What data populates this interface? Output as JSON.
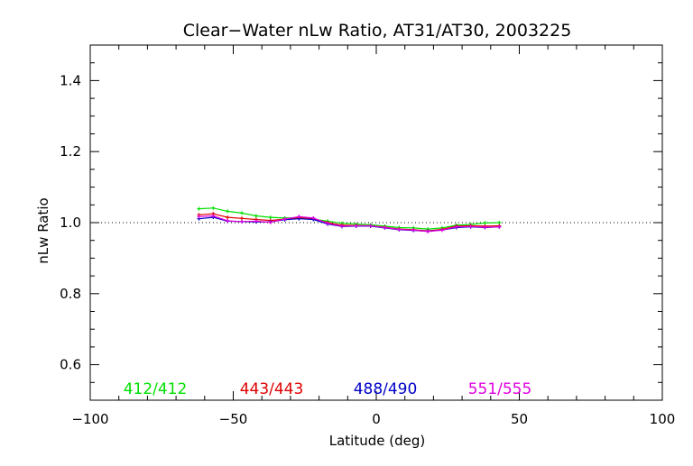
{
  "chart_data": {
    "type": "line",
    "title": "Clear−Water nLw Ratio, AT31/AT30, 2003225",
    "xlabel": "Latitude (deg)",
    "ylabel": "nLw Ratio",
    "xlim": [
      -100,
      100
    ],
    "ylim": [
      0.5,
      1.5
    ],
    "x_ticks": [
      -100,
      -50,
      0,
      50,
      100
    ],
    "x_tick_labels": [
      "−100",
      "−50",
      "0",
      "50",
      "100"
    ],
    "y_ticks": [
      0.6,
      0.8,
      1.0,
      1.2,
      1.4
    ],
    "y_tick_labels": [
      "0.6",
      "0.8",
      "1.0",
      "1.2",
      "1.4"
    ],
    "reference_line": 1.0,
    "grid": false,
    "series": [
      {
        "name": "412/412",
        "color": "#00e000",
        "x": [
          -62,
          -57,
          -52,
          -47,
          -42,
          -37,
          -32,
          -27,
          -22,
          -17,
          -12,
          -7,
          -2,
          3,
          8,
          13,
          18,
          23,
          28,
          33,
          38,
          43
        ],
        "values": [
          1.039,
          1.041,
          1.032,
          1.027,
          1.019,
          1.015,
          1.013,
          1.014,
          1.01,
          1.004,
          0.998,
          0.996,
          0.994,
          0.99,
          0.986,
          0.985,
          0.982,
          0.985,
          0.993,
          0.995,
          0.999,
          1.0
        ]
      },
      {
        "name": "443/443",
        "color": "#e00000",
        "x": [
          -62,
          -57,
          -52,
          -47,
          -42,
          -37,
          -32,
          -27,
          -22,
          -17,
          -12,
          -7,
          -2,
          3,
          8,
          13,
          18,
          23,
          28,
          33,
          38,
          43
        ],
        "values": [
          1.022,
          1.025,
          1.015,
          1.012,
          1.009,
          1.006,
          1.01,
          1.014,
          1.011,
          1.0,
          0.993,
          0.992,
          0.991,
          0.987,
          0.982,
          0.98,
          0.977,
          0.981,
          0.99,
          0.991,
          0.99,
          0.991
        ]
      },
      {
        "name": "488/490",
        "color": "#0000c8",
        "x": [
          -62,
          -57,
          -52,
          -47,
          -42,
          -37,
          -32,
          -27,
          -22,
          -17,
          -12,
          -7,
          -2,
          3,
          8,
          13,
          18,
          23,
          28,
          33,
          38,
          43
        ],
        "values": [
          1.011,
          1.015,
          1.004,
          1.003,
          1.002,
          1.002,
          1.008,
          1.011,
          1.009,
          0.996,
          0.989,
          0.99,
          0.99,
          0.985,
          0.98,
          0.978,
          0.976,
          0.979,
          0.986,
          0.988,
          0.986,
          0.988
        ]
      },
      {
        "name": "551/555",
        "color": "#e000e0",
        "x": [
          -62,
          -57,
          -52,
          -47,
          -42,
          -37,
          -32,
          -27,
          -22,
          -17,
          -12,
          -7,
          -2,
          3,
          8,
          13,
          18,
          23,
          28,
          33,
          38,
          43
        ],
        "values": [
          1.017,
          1.019,
          1.005,
          1.003,
          1.004,
          1.001,
          1.01,
          1.017,
          1.013,
          0.998,
          0.99,
          0.991,
          0.991,
          0.986,
          0.981,
          0.979,
          0.975,
          0.979,
          0.988,
          0.989,
          0.987,
          0.988
        ]
      }
    ],
    "legend_placement": "bottom-inside"
  }
}
